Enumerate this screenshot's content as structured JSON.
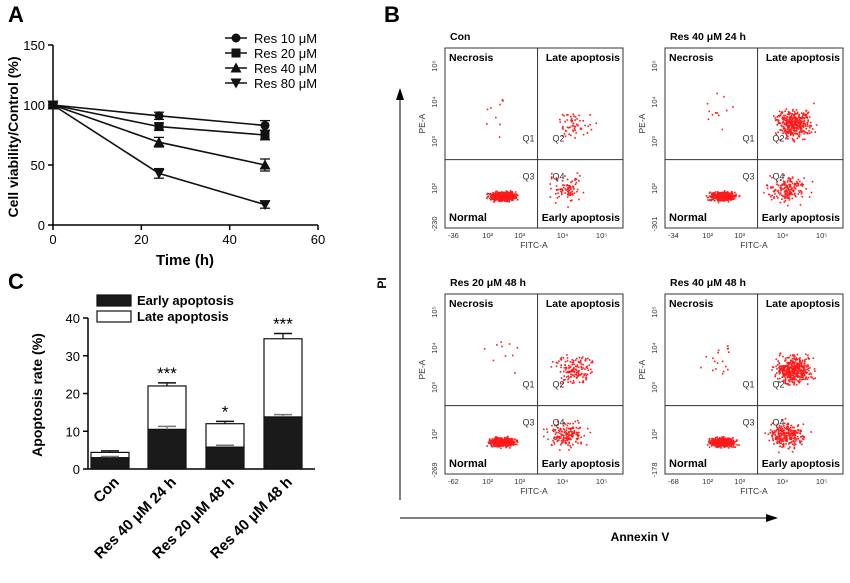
{
  "chart_data": [
    {
      "panel": "A",
      "type": "line",
      "xlabel": "Time (h)",
      "ylabel": "Cell viability/Control (%)",
      "xlim": [
        0,
        60
      ],
      "ylim": [
        0,
        150
      ],
      "xticks": [
        0,
        20,
        40,
        60
      ],
      "yticks": [
        0,
        50,
        100,
        150
      ],
      "legend_position": "top-right",
      "x": [
        0,
        24,
        48
      ],
      "series": [
        {
          "name": "Res 10 μM",
          "marker": "circle",
          "values": [
            100,
            91,
            83
          ],
          "err": [
            2,
            3,
            4
          ]
        },
        {
          "name": "Res 20 μM",
          "marker": "square",
          "values": [
            100,
            82,
            75
          ],
          "err": [
            2,
            3,
            4
          ]
        },
        {
          "name": "Res 40 μM",
          "marker": "triangle-up",
          "values": [
            100,
            69,
            50
          ],
          "err": [
            2,
            4,
            5
          ]
        },
        {
          "name": "Res 80 μM",
          "marker": "triangle-down",
          "values": [
            100,
            43,
            17
          ],
          "err": [
            2,
            4,
            3
          ]
        }
      ]
    },
    {
      "panel": "C",
      "type": "bar",
      "stacked": true,
      "ylabel": "Apoptosis rate (%)",
      "ylim": [
        0,
        40
      ],
      "yticks": [
        0,
        10,
        20,
        30,
        40
      ],
      "legend_position": "top-left",
      "categories": [
        "Con",
        "Res 40 μM 24 h",
        "Res 20 μM 48 h",
        "Res 40 μM 48 h"
      ],
      "significance": [
        "",
        "***",
        "*",
        "***"
      ],
      "series": [
        {
          "name": "Early apoptosis",
          "color": "#1a1a1a",
          "values": [
            3.0,
            10.5,
            5.8,
            13.8
          ],
          "err": [
            0.3,
            0.8,
            0.5,
            0.6
          ]
        },
        {
          "name": "Late apoptosis",
          "color": "#ffffff",
          "values": [
            1.4,
            11.5,
            6.2,
            20.7
          ],
          "err": [
            0.4,
            0.8,
            0.6,
            1.4
          ]
        }
      ]
    },
    {
      "panel": "B",
      "type": "scatter",
      "description_axis_x": "Annexin V",
      "description_axis_y": "PI",
      "subplot_xlabel": "FITC-A",
      "subplot_ylabel": "PE-A",
      "quadrant_labels": {
        "tl": "Necrosis",
        "tr": "Late apoptosis",
        "bl": "Normal",
        "br": "Early apoptosis"
      },
      "quadrant_ids": [
        "Q1",
        "Q2",
        "Q3",
        "Q4"
      ],
      "x_tick_labels": [
        "10²",
        "10³",
        "10⁴",
        "10⁵"
      ],
      "y_tick_labels": [
        "10²",
        "10³",
        "10⁴",
        "10⁵"
      ],
      "plots": [
        {
          "title": "Con",
          "x_min_label": "-36",
          "y_min_label": "-230",
          "counts": {
            "normal": 600,
            "late": 60,
            "early": 90,
            "necrosis": 10
          }
        },
        {
          "title": "Res 40 μM 24 h",
          "x_min_label": "-34",
          "y_min_label": "-301",
          "counts": {
            "normal": 450,
            "late": 380,
            "early": 180,
            "necrosis": 12
          }
        },
        {
          "title": "Res 20 μM 48 h",
          "x_min_label": "-62",
          "y_min_label": "-269",
          "counts": {
            "normal": 550,
            "late": 150,
            "early": 170,
            "necrosis": 10
          }
        },
        {
          "title": "Res 40 μM 48 h",
          "x_min_label": "-68",
          "y_min_label": "-178",
          "counts": {
            "normal": 480,
            "late": 420,
            "early": 260,
            "necrosis": 18
          }
        }
      ]
    }
  ],
  "panels": {
    "a": "A",
    "b": "B",
    "c": "C"
  },
  "colors": {
    "dots": "#ff1a1a",
    "axis": "#000000"
  }
}
